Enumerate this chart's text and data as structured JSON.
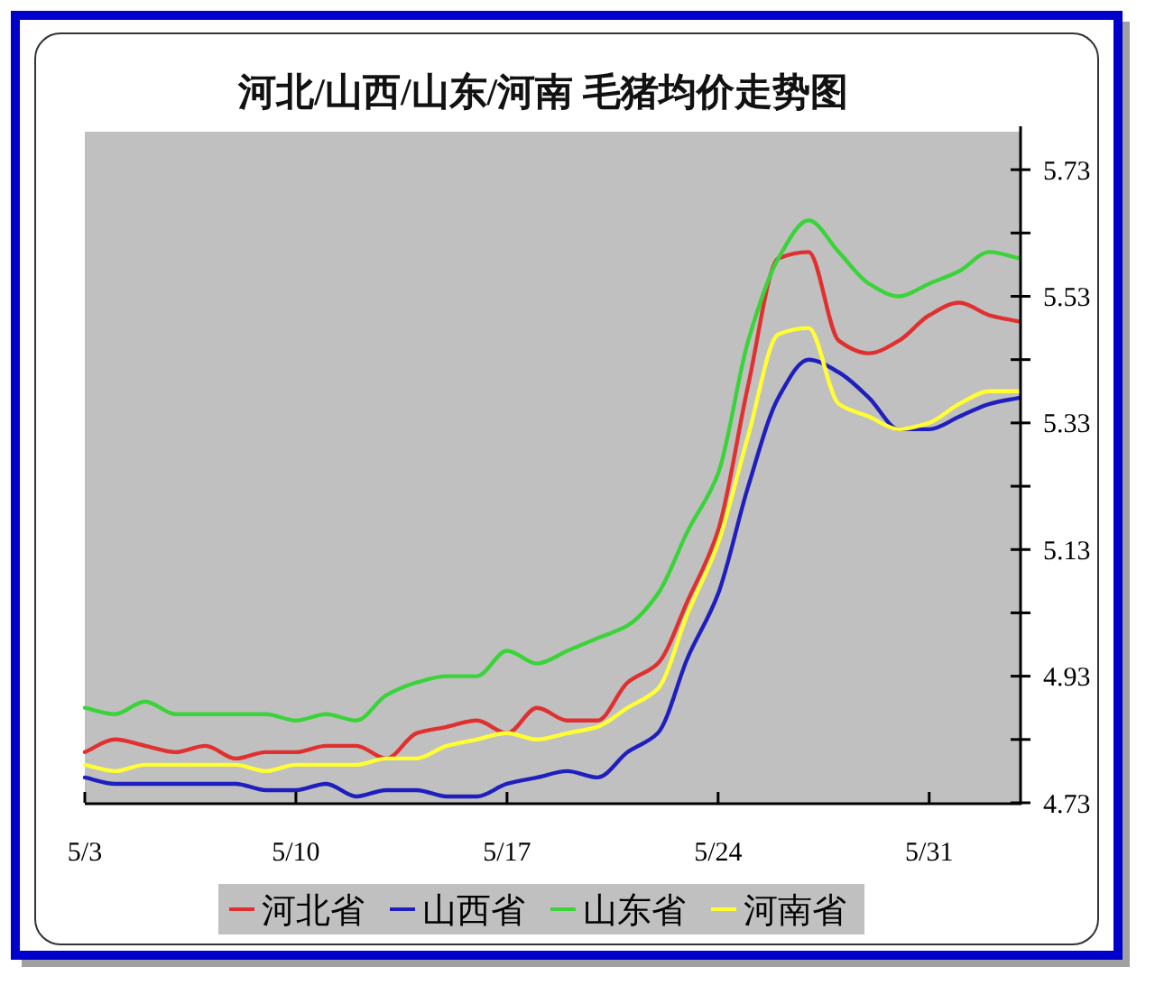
{
  "chart_data": {
    "type": "line",
    "title": "河北/山西/山东/河南 毛猪均价走势图",
    "x": [
      "--05-03",
      "--05-04",
      "--05-05",
      "--05-06",
      "--05-07",
      "--05-08",
      "--05-09",
      "--05-10",
      "--05-11",
      "--05-12",
      "--05-13",
      "--05-14",
      "--05-15",
      "--05-16",
      "--05-17",
      "--05-18",
      "--05-19",
      "--05-20",
      "--05-21",
      "--05-22",
      "--05-23",
      "--05-24",
      "--05-25",
      "--05-26",
      "--05-27",
      "--05-28",
      "--05-29",
      "--05-30",
      "--05-31",
      "--06-01",
      "--06-02",
      "--06-03"
    ],
    "series": [
      {
        "name": "河北省",
        "color": "#e03030",
        "values": [
          4.81,
          4.83,
          4.82,
          4.81,
          4.82,
          4.8,
          4.81,
          4.81,
          4.82,
          4.82,
          4.8,
          4.84,
          4.85,
          4.86,
          4.84,
          4.88,
          4.86,
          4.86,
          4.92,
          4.95,
          5.05,
          5.16,
          5.39,
          5.59,
          5.6,
          5.46,
          5.44,
          5.46,
          5.5,
          5.52,
          5.5,
          5.49
        ]
      },
      {
        "name": "山西省",
        "color": "#1f1fbf",
        "values": [
          4.77,
          4.76,
          4.76,
          4.76,
          4.76,
          4.76,
          4.75,
          4.75,
          4.76,
          4.74,
          4.75,
          4.75,
          4.74,
          4.74,
          4.76,
          4.77,
          4.78,
          4.77,
          4.81,
          4.84,
          4.96,
          5.06,
          5.23,
          5.37,
          5.43,
          5.41,
          5.37,
          5.32,
          5.32,
          5.34,
          5.36,
          5.37
        ]
      },
      {
        "name": "山东省",
        "color": "#3ad43a",
        "values": [
          4.88,
          4.87,
          4.89,
          4.87,
          4.87,
          4.87,
          4.87,
          4.86,
          4.87,
          4.86,
          4.9,
          4.92,
          4.93,
          4.93,
          4.97,
          4.95,
          4.97,
          4.99,
          5.01,
          5.06,
          5.16,
          5.25,
          5.46,
          5.59,
          5.65,
          5.6,
          5.55,
          5.53,
          5.55,
          5.57,
          5.6,
          5.59
        ]
      },
      {
        "name": "河南省",
        "color": "#ffff33",
        "values": [
          4.79,
          4.78,
          4.79,
          4.79,
          4.79,
          4.79,
          4.78,
          4.79,
          4.79,
          4.79,
          4.8,
          4.8,
          4.82,
          4.83,
          4.84,
          4.83,
          4.84,
          4.85,
          4.88,
          4.91,
          5.03,
          5.14,
          5.31,
          5.47,
          5.48,
          5.36,
          5.34,
          5.32,
          5.33,
          5.36,
          5.38,
          5.38
        ]
      }
    ],
    "xlim": [
      "--05-03",
      "--06-03"
    ],
    "xticks": [
      {
        "value": "--05-03",
        "label": "5/3"
      },
      {
        "value": "--05-10",
        "label": "5/10"
      },
      {
        "value": "--05-17",
        "label": "5/17"
      },
      {
        "value": "--05-24",
        "label": "5/24"
      },
      {
        "value": "--05-31",
        "label": "5/31"
      }
    ],
    "ylim": [
      4.73,
      5.79
    ],
    "yticks": [
      4.73,
      {
        "value": 4.83,
        "label": null
      },
      4.93,
      {
        "value": 5.03,
        "label": null
      },
      5.13,
      {
        "value": 5.23,
        "label": null
      },
      5.33,
      {
        "value": 5.43,
        "label": null
      },
      5.53,
      {
        "value": 5.63,
        "label": null
      },
      5.73
    ],
    "legend": "bottom"
  }
}
